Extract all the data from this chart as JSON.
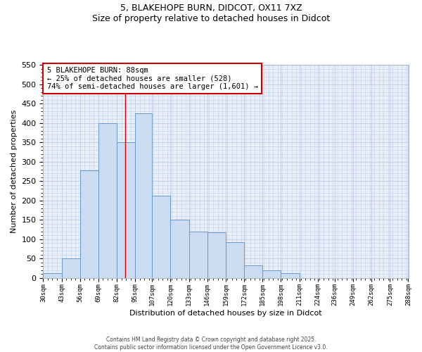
{
  "title_line1": "5, BLAKEHOPE BURN, DIDCOT, OX11 7XZ",
  "title_line2": "Size of property relative to detached houses in Didcot",
  "xlabel": "Distribution of detached houses by size in Didcot",
  "ylabel": "Number of detached properties",
  "bins": [
    30,
    43,
    56,
    69,
    82,
    95,
    107,
    120,
    133,
    146,
    159,
    172,
    185,
    198,
    211,
    224,
    236,
    249,
    262,
    275,
    288
  ],
  "bin_labels": [
    "30sqm",
    "43sqm",
    "56sqm",
    "69sqm",
    "82sqm",
    "95sqm",
    "107sqm",
    "120sqm",
    "133sqm",
    "146sqm",
    "159sqm",
    "172sqm",
    "185sqm",
    "198sqm",
    "211sqm",
    "224sqm",
    "236sqm",
    "249sqm",
    "262sqm",
    "275sqm",
    "288sqm"
  ],
  "counts": [
    12,
    50,
    277,
    400,
    350,
    425,
    212,
    150,
    120,
    118,
    92,
    32,
    20,
    12,
    0,
    0,
    0,
    0,
    0,
    0
  ],
  "bar_facecolor": "#ccdcf0",
  "bar_edgecolor": "#6699cc",
  "grid_color": "#c0cfe8",
  "background_color": "#e8eff9",
  "vline_x": 88,
  "vline_color": "#cc0000",
  "annotation_text": "5 BLAKEHOPE BURN: 88sqm\n← 25% of detached houses are smaller (528)\n74% of semi-detached houses are larger (1,601) →",
  "annotation_box_edgecolor": "#cc0000",
  "ylim": [
    0,
    550
  ],
  "yticks": [
    0,
    50,
    100,
    150,
    200,
    250,
    300,
    350,
    400,
    450,
    500,
    550
  ],
  "footer_line1": "Contains HM Land Registry data © Crown copyright and database right 2025.",
  "footer_line2": "Contains public sector information licensed under the Open Government Licence v3.0."
}
